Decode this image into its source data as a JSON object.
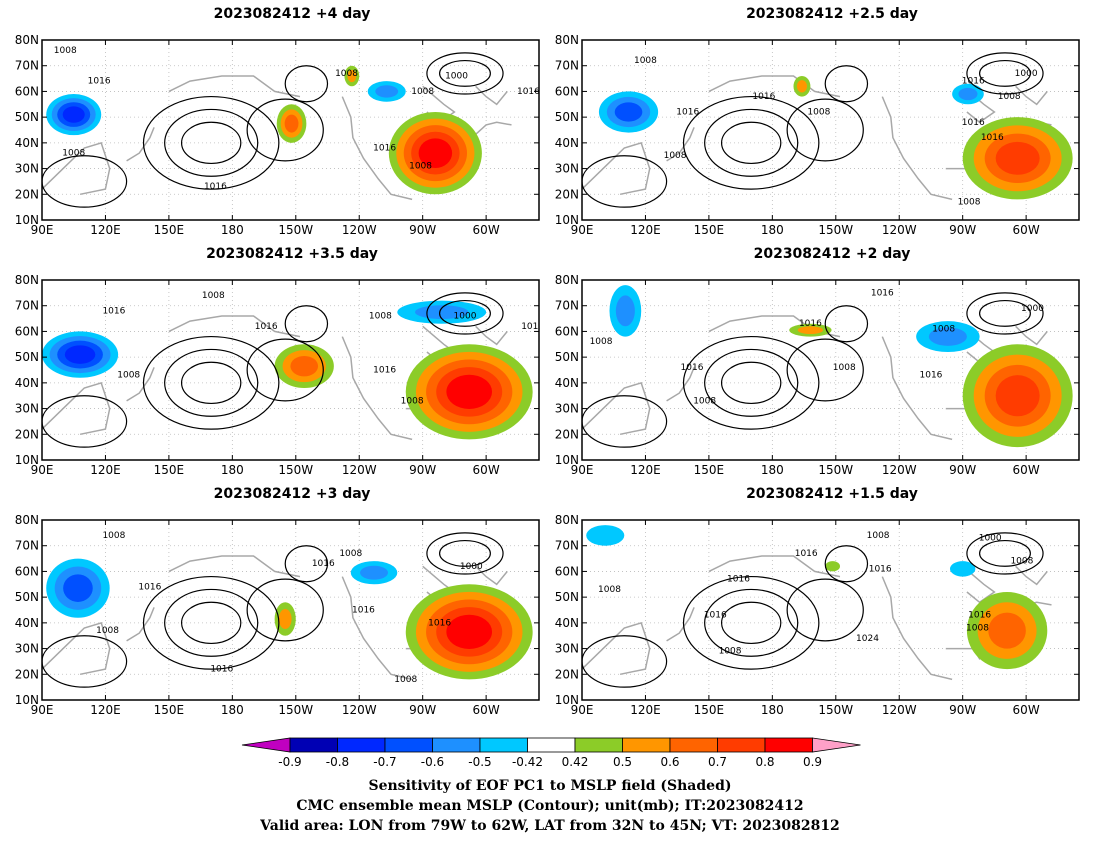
{
  "panels": [
    {
      "title": "2023082412 +4 day"
    },
    {
      "title": "2023082412 +2.5 day"
    },
    {
      "title": "2023082412 +3.5 day"
    },
    {
      "title": "2023082412 +2 day"
    },
    {
      "title": "2023082412 +3 day"
    },
    {
      "title": "2023082412 +1.5 day"
    }
  ],
  "axes": {
    "x_ticks": [
      "90E",
      "120E",
      "150E",
      "180",
      "150W",
      "120W",
      "90W",
      "60W"
    ],
    "x_values": [
      90,
      120,
      150,
      180,
      210,
      240,
      270,
      300
    ],
    "y_ticks": [
      "10N",
      "20N",
      "30N",
      "40N",
      "50N",
      "60N",
      "70N",
      "80N"
    ],
    "y_values": [
      10,
      20,
      30,
      40,
      50,
      60,
      70,
      80
    ],
    "lon_range": [
      90,
      325
    ],
    "lat_range": [
      10,
      80
    ]
  },
  "colorbar": {
    "labels": [
      "-0.9",
      "-0.8",
      "-0.7",
      "-0.6",
      "-0.5",
      "-0.42",
      "0.42",
      "0.5",
      "0.6",
      "0.7",
      "0.8",
      "0.9"
    ],
    "colors": [
      "#c000c0",
      "#0000b4",
      "#0028ff",
      "#0050ff",
      "#1e90ff",
      "#00c8ff",
      "#ffffff",
      "#8ccc28",
      "#ff9600",
      "#ff6400",
      "#ff3c00",
      "#ff0000",
      "#ffa0c8"
    ]
  },
  "footer": {
    "line1": "Sensitivity of EOF PC1 to MSLP field (Shaded)",
    "line2": "CMC ensemble mean MSLP (Contour); unit(mb); IT:2023082412",
    "line3": "Valid area: LON from 79W to 62W, LAT from 32N to 45N; VT: 2023082812"
  },
  "chart_data": [
    {
      "type": "heatmap",
      "title": "2023082412 +4 day",
      "contour_labels": [
        {
          "text": "1008",
          "lon": 101,
          "lat": 76
        },
        {
          "text": "1016",
          "lon": 117,
          "lat": 64
        },
        {
          "text": "1008",
          "lon": 234,
          "lat": 67
        },
        {
          "text": "1000",
          "lon": 286,
          "lat": 66
        },
        {
          "text": "1008",
          "lon": 270,
          "lat": 60
        },
        {
          "text": "1016",
          "lon": 320,
          "lat": 60
        },
        {
          "text": "1016",
          "lon": 252,
          "lat": 38
        },
        {
          "text": "1008",
          "lon": 105,
          "lat": 36
        },
        {
          "text": "1008",
          "lon": 269,
          "lat": 31
        },
        {
          "text": "1016",
          "lon": 172,
          "lat": 23
        }
      ],
      "positive_regions": [
        {
          "lon": [
            254,
            298
          ],
          "lat": [
            20,
            52
          ],
          "peak": 0.9
        },
        {
          "lon": [
            201,
            215
          ],
          "lat": [
            40,
            55
          ],
          "peak": 0.7
        },
        {
          "lon": [
            233,
            240
          ],
          "lat": [
            62,
            70
          ],
          "peak": 0.6
        }
      ],
      "negative_regions": [
        {
          "lon": [
            92,
            118
          ],
          "lat": [
            43,
            59
          ],
          "peak": -0.8
        },
        {
          "lon": [
            244,
            262
          ],
          "lat": [
            56,
            64
          ],
          "peak": -0.6
        }
      ]
    },
    {
      "type": "heatmap",
      "title": "2023082412 +2.5 day",
      "contour_labels": [
        {
          "text": "1008",
          "lon": 120,
          "lat": 72
        },
        {
          "text": "1000",
          "lon": 300,
          "lat": 67
        },
        {
          "text": "1016",
          "lon": 275,
          "lat": 64
        },
        {
          "text": "1016",
          "lon": 176,
          "lat": 58
        },
        {
          "text": "1008",
          "lon": 202,
          "lat": 52
        },
        {
          "text": "1008",
          "lon": 292,
          "lat": 58
        },
        {
          "text": "1016",
          "lon": 140,
          "lat": 52
        },
        {
          "text": "1016",
          "lon": 275,
          "lat": 48
        },
        {
          "text": "1016",
          "lon": 284,
          "lat": 42
        },
        {
          "text": "1008",
          "lon": 134,
          "lat": 35
        },
        {
          "text": "1008",
          "lon": 273,
          "lat": 17
        }
      ],
      "positive_regions": [
        {
          "lon": [
            270,
            322
          ],
          "lat": [
            18,
            50
          ],
          "peak": 0.8
        },
        {
          "lon": [
            190,
            198
          ],
          "lat": [
            58,
            66
          ],
          "peak": 0.6
        }
      ],
      "negative_regions": [
        {
          "lon": [
            98,
            126
          ],
          "lat": [
            44,
            60
          ],
          "peak": -0.7
        },
        {
          "lon": [
            265,
            280
          ],
          "lat": [
            55,
            63
          ],
          "peak": -0.6
        }
      ]
    },
    {
      "type": "heatmap",
      "title": "2023082412 +3.5 day",
      "contour_labels": [
        {
          "text": "1008",
          "lon": 171,
          "lat": 74
        },
        {
          "text": "1016",
          "lon": 124,
          "lat": 68
        },
        {
          "text": "1008",
          "lon": 250,
          "lat": 66
        },
        {
          "text": "1000",
          "lon": 290,
          "lat": 66
        },
        {
          "text": "1016",
          "lon": 322,
          "lat": 62
        },
        {
          "text": "1016",
          "lon": 196,
          "lat": 62
        },
        {
          "text": "1016",
          "lon": 252,
          "lat": 45
        },
        {
          "text": "1008",
          "lon": 131,
          "lat": 43
        },
        {
          "text": "1008",
          "lon": 265,
          "lat": 33
        }
      ],
      "positive_regions": [
        {
          "lon": [
            262,
            322
          ],
          "lat": [
            18,
            55
          ],
          "peak": 0.9
        },
        {
          "lon": [
            200,
            228
          ],
          "lat": [
            38,
            55
          ],
          "peak": 0.7
        }
      ],
      "negative_regions": [
        {
          "lon": [
            90,
            126
          ],
          "lat": [
            42,
            60
          ],
          "peak": -0.8
        },
        {
          "lon": [
            258,
            300
          ],
          "lat": [
            63,
            72
          ],
          "peak": -0.6
        }
      ]
    },
    {
      "type": "heatmap",
      "title": "2023082412 +2 day",
      "contour_labels": [
        {
          "text": "1016",
          "lon": 232,
          "lat": 75
        },
        {
          "text": "1000",
          "lon": 303,
          "lat": 69
        },
        {
          "text": "1016",
          "lon": 198,
          "lat": 63
        },
        {
          "text": "1008",
          "lon": 261,
          "lat": 61
        },
        {
          "text": "1008",
          "lon": 99,
          "lat": 56
        },
        {
          "text": "1008",
          "lon": 214,
          "lat": 46
        },
        {
          "text": "1016",
          "lon": 255,
          "lat": 43
        },
        {
          "text": "1016",
          "lon": 142,
          "lat": 46
        },
        {
          "text": "1008",
          "lon": 148,
          "lat": 33
        }
      ],
      "positive_regions": [
        {
          "lon": [
            270,
            322
          ],
          "lat": [
            15,
            55
          ],
          "peak": 0.8
        },
        {
          "lon": [
            188,
            208
          ],
          "lat": [
            58,
            63
          ],
          "peak": 0.6
        }
      ],
      "negative_regions": [
        {
          "lon": [
            103,
            118
          ],
          "lat": [
            58,
            78
          ],
          "peak": -0.6
        },
        {
          "lon": [
            248,
            278
          ],
          "lat": [
            52,
            64
          ],
          "peak": -0.6
        }
      ]
    },
    {
      "type": "heatmap",
      "title": "2023082412 +3 day",
      "contour_labels": [
        {
          "text": "1008",
          "lon": 124,
          "lat": 74
        },
        {
          "text": "1008",
          "lon": 236,
          "lat": 67
        },
        {
          "text": "1016",
          "lon": 223,
          "lat": 63
        },
        {
          "text": "1000",
          "lon": 293,
          "lat": 62
        },
        {
          "text": "1016",
          "lon": 141,
          "lat": 54
        },
        {
          "text": "1016",
          "lon": 242,
          "lat": 45
        },
        {
          "text": "1016",
          "lon": 278,
          "lat": 40
        },
        {
          "text": "1008",
          "lon": 121,
          "lat": 37
        },
        {
          "text": "1016",
          "lon": 175,
          "lat": 22
        },
        {
          "text": "1008",
          "lon": 262,
          "lat": 18
        }
      ],
      "positive_regions": [
        {
          "lon": [
            262,
            322
          ],
          "lat": [
            18,
            55
          ],
          "peak": 0.9
        },
        {
          "lon": [
            200,
            210
          ],
          "lat": [
            35,
            48
          ],
          "peak": 0.6
        }
      ],
      "negative_regions": [
        {
          "lon": [
            92,
            122
          ],
          "lat": [
            42,
            65
          ],
          "peak": -0.7
        },
        {
          "lon": [
            236,
            258
          ],
          "lat": [
            55,
            64
          ],
          "peak": -0.6
        }
      ]
    },
    {
      "type": "heatmap",
      "title": "2023082412 +1.5 day",
      "contour_labels": [
        {
          "text": "1008",
          "lon": 230,
          "lat": 74
        },
        {
          "text": "1000",
          "lon": 283,
          "lat": 73
        },
        {
          "text": "1016",
          "lon": 196,
          "lat": 67
        },
        {
          "text": "1016",
          "lon": 231,
          "lat": 61
        },
        {
          "text": "1008",
          "lon": 298,
          "lat": 64
        },
        {
          "text": "1016",
          "lon": 164,
          "lat": 57
        },
        {
          "text": "1008",
          "lon": 103,
          "lat": 53
        },
        {
          "text": "1016",
          "lon": 153,
          "lat": 43
        },
        {
          "text": "1016",
          "lon": 278,
          "lat": 43
        },
        {
          "text": "1008",
          "lon": 277,
          "lat": 38
        },
        {
          "text": "1024",
          "lon": 225,
          "lat": 34
        },
        {
          "text": "1008",
          "lon": 160,
          "lat": 29
        }
      ],
      "positive_regions": [
        {
          "lon": [
            272,
            310
          ],
          "lat": [
            22,
            52
          ],
          "peak": 0.7
        },
        {
          "lon": [
            205,
            212
          ],
          "lat": [
            60,
            64
          ],
          "peak": 0.5
        }
      ],
      "negative_regions": [
        {
          "lon": [
            92,
            110
          ],
          "lat": [
            70,
            78
          ],
          "peak": -0.5
        },
        {
          "lon": [
            264,
            276
          ],
          "lat": [
            58,
            64
          ],
          "peak": -0.5
        }
      ]
    }
  ]
}
